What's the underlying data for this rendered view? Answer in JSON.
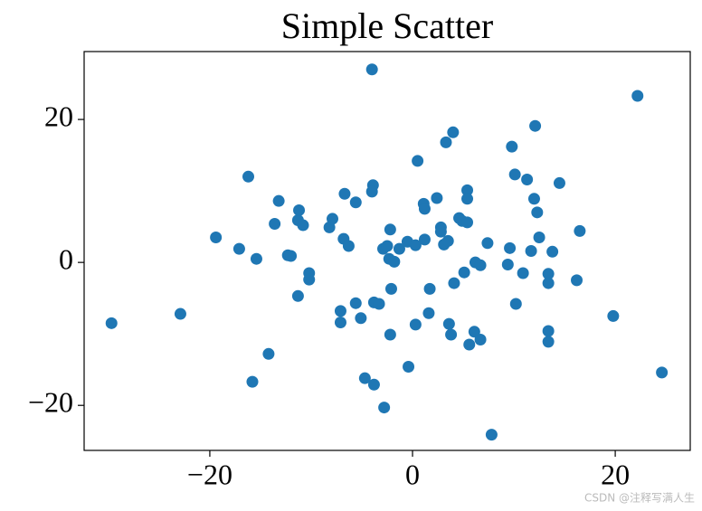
{
  "chart_data": {
    "type": "scatter",
    "title": "Simple Scatter",
    "color": "#1f77b4",
    "x": [
      -29.7,
      -22.9,
      -19.4,
      -17.1,
      -16.2,
      -15.4,
      -15.8,
      -14.2,
      -13.6,
      -13.2,
      -12.3,
      -12.0,
      -11.3,
      -11.2,
      -10.8,
      -11.3,
      -10.2,
      -10.2,
      -8.2,
      -7.9,
      -7.1,
      -7.1,
      -6.8,
      -6.7,
      -6.3,
      -5.6,
      -5.6,
      -5.1,
      -4.7,
      -4.0,
      -3.9,
      -4.0,
      -3.8,
      -3.8,
      -3.3,
      -2.9,
      -2.8,
      -2.5,
      -2.3,
      -2.2,
      -2.2,
      -2.1,
      -1.8,
      -1.3,
      -0.5,
      -0.4,
      0.3,
      0.3,
      0.5,
      1.1,
      1.2,
      1.2,
      1.6,
      1.7,
      2.4,
      2.8,
      2.8,
      3.1,
      3.3,
      3.5,
      3.6,
      3.8,
      4.0,
      4.1,
      4.6,
      4.9,
      5.1,
      5.4,
      5.4,
      5.4,
      5.6,
      6.1,
      6.2,
      6.7,
      6.7,
      7.4,
      7.8,
      9.4,
      9.6,
      9.8,
      10.1,
      10.2,
      10.9,
      11.3,
      11.7,
      12.0,
      12.1,
      12.3,
      12.5,
      13.4,
      13.4,
      13.4,
      13.4,
      13.8,
      14.5,
      16.2,
      16.5,
      19.8,
      22.2,
      24.6
    ],
    "values": [
      -8.5,
      -7.2,
      3.5,
      1.9,
      12.0,
      0.5,
      -16.7,
      -12.8,
      5.4,
      8.6,
      1.0,
      0.9,
      5.9,
      7.3,
      5.2,
      -4.7,
      -1.5,
      -2.4,
      4.9,
      6.1,
      -6.8,
      -8.4,
      3.3,
      9.6,
      2.3,
      8.4,
      -5.7,
      -7.8,
      -16.2,
      27.0,
      10.8,
      9.9,
      -5.6,
      -17.1,
      -5.8,
      1.9,
      -20.3,
      2.3,
      0.5,
      4.6,
      -10.1,
      -3.7,
      0.1,
      1.9,
      2.9,
      -14.6,
      2.4,
      -8.7,
      14.2,
      8.2,
      7.5,
      3.2,
      -7.1,
      -3.7,
      9.0,
      4.9,
      4.3,
      2.5,
      16.8,
      3.0,
      -8.6,
      -10.1,
      18.2,
      -2.9,
      6.2,
      5.8,
      -1.4,
      10.1,
      8.9,
      5.6,
      -11.5,
      -9.7,
      0.0,
      -0.4,
      -10.8,
      2.7,
      -24.1,
      -0.3,
      2.0,
      16.2,
      12.3,
      -5.8,
      -1.5,
      11.6,
      1.6,
      8.9,
      19.1,
      7.0,
      3.5,
      -1.6,
      -2.9,
      -9.6,
      -11.1,
      1.5,
      11.1,
      -2.5,
      4.4,
      -7.5,
      23.3,
      -15.4
    ],
    "xlim": [
      -32.4,
      27.4
    ],
    "ylim": [
      -26.3,
      29.5
    ],
    "xticks": [
      {
        "value": -20,
        "label": "−20"
      },
      0,
      20
    ],
    "yticks": [
      {
        "value": -20,
        "label": "−20"
      },
      0,
      20
    ]
  },
  "watermark": "CSDN @注释写满人生"
}
